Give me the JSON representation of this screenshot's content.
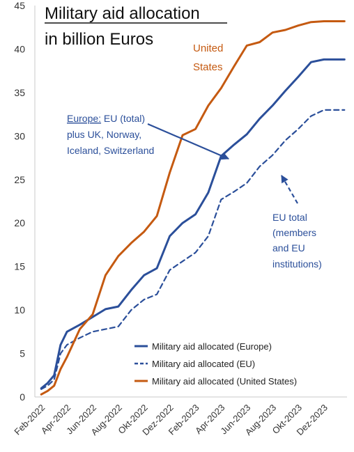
{
  "chart_data": {
    "type": "line",
    "title_lines": [
      "Military aid allocation",
      "in billion Euros"
    ],
    "ylim": [
      0,
      45
    ],
    "yticks": [
      0,
      5,
      10,
      15,
      20,
      25,
      30,
      35,
      40,
      45
    ],
    "x_tick_labels": [
      "Feb-2022",
      "Apr-2022",
      "Jun-2022",
      "Aug-2022",
      "Okt-2022",
      "Dez-2022",
      "Feb-2023",
      "Apr-2023",
      "Jun-2023",
      "Aug-2023",
      "Okt-2023",
      "Dez-2023"
    ],
    "x_tick_positions": [
      0,
      2,
      4,
      6,
      8,
      10,
      12,
      14,
      16,
      18,
      20,
      22
    ],
    "xlim": [
      -0.5,
      23.8
    ],
    "grid": false,
    "legend_position": "lower-right",
    "colors": {
      "europe": "#2b4f9a",
      "eu": "#2b4f9a",
      "us": "#c55a11"
    },
    "series": [
      {
        "name": "Military aid allocated (Europe)",
        "key": "europe",
        "style": "solid",
        "x": [
          0,
          0.5,
          1,
          1.5,
          2,
          3,
          4,
          5,
          6,
          7,
          8,
          9,
          10,
          11,
          12,
          13,
          14,
          15,
          16,
          17,
          18,
          19,
          20,
          21,
          22,
          23,
          23.6
        ],
        "values": [
          1.0,
          1.6,
          2.5,
          6.0,
          7.5,
          8.3,
          9.2,
          10.1,
          10.4,
          12.3,
          14.0,
          14.8,
          18.5,
          20.0,
          21.0,
          23.5,
          27.7,
          29.0,
          30.2,
          32.0,
          33.5,
          35.2,
          36.8,
          38.5,
          38.8,
          38.8,
          38.8
        ]
      },
      {
        "name": "Military aid allocated (EU)",
        "key": "eu",
        "style": "dashed",
        "x": [
          0,
          0.5,
          1,
          1.5,
          2,
          3,
          4,
          5,
          6,
          7,
          8,
          9,
          10,
          11,
          12,
          13,
          14,
          15,
          16,
          17,
          18,
          19,
          20,
          21,
          22,
          23,
          23.6
        ],
        "values": [
          0.9,
          1.3,
          2.0,
          5.0,
          6.0,
          6.8,
          7.5,
          7.8,
          8.1,
          10.0,
          11.2,
          11.8,
          14.6,
          15.6,
          16.6,
          18.5,
          22.7,
          23.6,
          24.6,
          26.5,
          27.8,
          29.5,
          30.8,
          32.3,
          33.0,
          33.0,
          33.0
        ]
      },
      {
        "name": "Military aid allocated (United States)",
        "key": "us",
        "style": "solid",
        "x": [
          0,
          0.5,
          1,
          1.5,
          2,
          3,
          4,
          5,
          6,
          7,
          8,
          9,
          10,
          11,
          12,
          13,
          14,
          15,
          16,
          17,
          18,
          19,
          20,
          21,
          22,
          23,
          23.6
        ],
        "values": [
          0.3,
          0.7,
          1.3,
          3.2,
          4.6,
          7.8,
          9.5,
          14.0,
          16.2,
          17.7,
          19.0,
          20.8,
          25.8,
          30.1,
          30.8,
          33.5,
          35.5,
          38.0,
          40.4,
          40.8,
          41.9,
          42.2,
          42.7,
          43.1,
          43.2,
          43.2,
          43.2
        ]
      }
    ],
    "annotations": {
      "us_label": [
        "United",
        "States"
      ],
      "europe_label_prefix": "Europe:",
      "europe_label_lines": [
        " EU (total)",
        "plus UK, Norway,",
        "Iceland, Switzerland"
      ],
      "eu_label_lines": [
        "EU total",
        "(members",
        "and EU",
        "institutions)"
      ]
    }
  }
}
